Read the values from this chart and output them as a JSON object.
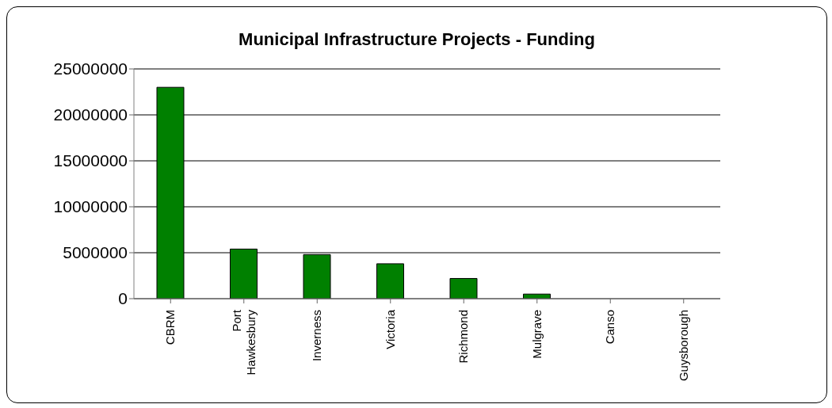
{
  "chart_data": {
    "type": "bar",
    "title": "Municipal Infrastructure Projects - Funding",
    "categories": [
      "CBRM",
      "Port Hawkesbury",
      "Inverness",
      "Victoria",
      "Richmond",
      "Mulgrave",
      "Canso",
      "Guysborough"
    ],
    "values": [
      23000000,
      5400000,
      4800000,
      3800000,
      2200000,
      500000,
      0,
      0
    ],
    "color": "#008000",
    "ylim": [
      0,
      25000000
    ],
    "yticks": [
      0,
      5000000,
      10000000,
      15000000,
      20000000,
      25000000
    ],
    "grid": "y"
  }
}
